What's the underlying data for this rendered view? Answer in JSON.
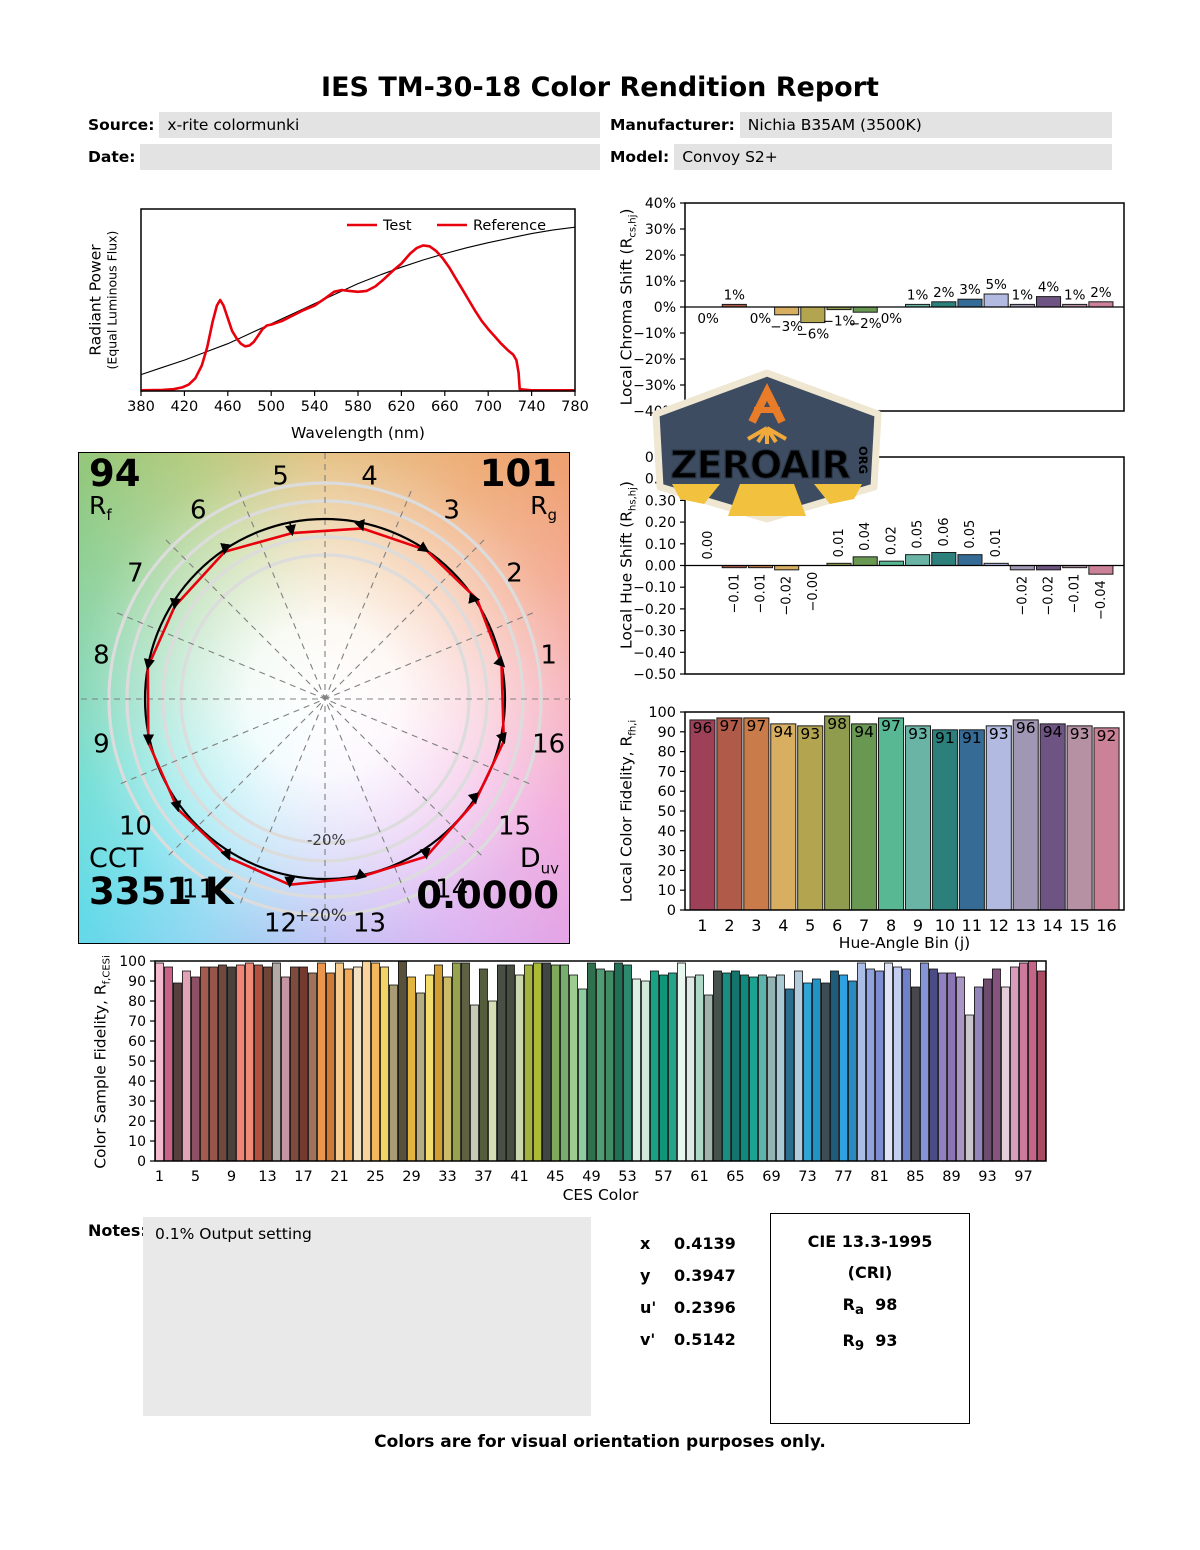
{
  "page": {
    "title": "IES TM-30-18 Color Rendition Report",
    "footer": "Colors are for visual orientation purposes only."
  },
  "fields": {
    "source_label": "Source:",
    "source_value": "x-rite colormunki",
    "manufacturer_label": "Manufacturer:",
    "manufacturer_value": "Nichia B35AM (3500K)",
    "date_label": "Date:",
    "date_value": "",
    "model_label": "Model:",
    "model_value": "Convoy S2+"
  },
  "watermark": {
    "name": "ZEROAIR",
    "org": "ORG",
    "bg": "#3d4c60",
    "accent": "#e87c28",
    "beam": "#f2c23e",
    "border": "#efe7d2"
  },
  "notes": {
    "label": "Notes:",
    "text": "0.1% Output setting"
  },
  "chromaticity": {
    "rows": [
      {
        "label": "x",
        "value": "0.4139"
      },
      {
        "label": "y",
        "value": "0.3947"
      },
      {
        "label": "u'",
        "value": "0.2396"
      },
      {
        "label": "v'",
        "value": "0.5142"
      }
    ]
  },
  "cri": {
    "title": "CIE 13.3-1995",
    "subtitle": "(CRI)",
    "ra_main": "R",
    "ra_sub": "a",
    "ra_value": "98",
    "r9_main": "R",
    "r9_sub": "9",
    "r9_value": "93"
  },
  "cvg": {
    "rf_value": "94",
    "rf_main": "R",
    "rf_sub": "f",
    "rg_value": "101",
    "rg_main": "R",
    "rg_sub": "g",
    "cct_label": "CCT",
    "cct_value": "3351 K",
    "duv_main": "D",
    "duv_sub": "uv",
    "duv_value": "0.0000",
    "ring_outer": "+20%",
    "ring_inner": "-20%",
    "test_color": "#e8000d",
    "bin_labels": [
      "1",
      "2",
      "3",
      "4",
      "5",
      "6",
      "7",
      "8",
      "9",
      "10",
      "11",
      "12",
      "13",
      "14",
      "15",
      "16"
    ],
    "chroma_shift_pct": [
      0,
      1,
      0,
      -3,
      -6,
      -1,
      -2,
      0,
      1,
      2,
      3,
      5,
      1,
      4,
      1,
      2
    ],
    "hue_shift": [
      0.0,
      -0.01,
      -0.01,
      -0.02,
      0.0,
      0.01,
      0.04,
      0.02,
      0.05,
      0.06,
      0.05,
      0.01,
      -0.02,
      -0.02,
      -0.01,
      -0.04
    ]
  },
  "bin_colors": [
    "#9e4058",
    "#b05a49",
    "#c97c49",
    "#d8ae60",
    "#b3a450",
    "#8f9b4d",
    "#689851",
    "#57b893",
    "#6ab4a5",
    "#2c7f7b",
    "#356b95",
    "#b2bae2",
    "#a097b4",
    "#6e5482",
    "#b691a4",
    "#cb8198"
  ],
  "chart_data": [
    {
      "id": "spd",
      "type": "line",
      "xlabel": "Wavelength (nm)",
      "ylabel_line1": "Radiant Power",
      "ylabel_line2": "(Equal Luminous Flux)",
      "xlim": [
        380,
        780
      ],
      "xticks": [
        380,
        420,
        460,
        500,
        540,
        580,
        620,
        660,
        700,
        740,
        780
      ],
      "legend": [
        {
          "label": "Test",
          "color": "#e8000d",
          "label_color": "#e8000d"
        },
        {
          "label": "Reference",
          "color": "#e8000d",
          "label_color": "#000000"
        }
      ],
      "series": [
        {
          "name": "Test",
          "color": "#e8000d",
          "width": 2.6,
          "x": [
            380,
            400,
            410,
            418,
            424,
            430,
            436,
            441,
            446,
            450,
            453,
            456,
            460,
            464,
            468,
            472,
            476,
            480,
            484,
            488,
            492,
            496,
            500,
            505,
            510,
            515,
            520,
            530,
            540,
            550,
            558,
            565,
            572,
            580,
            588,
            596,
            604,
            612,
            620,
            628,
            634,
            640,
            646,
            652,
            658,
            664,
            670,
            676,
            682,
            688,
            694,
            700,
            706,
            712,
            718,
            723,
            726,
            728,
            729,
            740,
            780
          ],
          "y": [
            0.004,
            0.006,
            0.01,
            0.02,
            0.035,
            0.07,
            0.14,
            0.24,
            0.38,
            0.47,
            0.5,
            0.47,
            0.4,
            0.33,
            0.29,
            0.26,
            0.245,
            0.25,
            0.27,
            0.305,
            0.34,
            0.36,
            0.365,
            0.375,
            0.385,
            0.4,
            0.415,
            0.445,
            0.47,
            0.51,
            0.545,
            0.555,
            0.55,
            0.545,
            0.55,
            0.575,
            0.615,
            0.66,
            0.7,
            0.755,
            0.785,
            0.8,
            0.795,
            0.77,
            0.73,
            0.68,
            0.62,
            0.56,
            0.5,
            0.44,
            0.385,
            0.34,
            0.3,
            0.26,
            0.225,
            0.2,
            0.17,
            0.1,
            0.01,
            0.004,
            0.004
          ]
        },
        {
          "name": "Reference",
          "color": "#000000",
          "width": 1.1,
          "x": [
            380,
            400,
            420,
            440,
            460,
            480,
            500,
            520,
            540,
            560,
            580,
            600,
            620,
            640,
            660,
            680,
            700,
            720,
            740,
            760,
            780
          ],
          "y": [
            0.09,
            0.13,
            0.17,
            0.215,
            0.26,
            0.315,
            0.37,
            0.425,
            0.48,
            0.535,
            0.59,
            0.637,
            0.68,
            0.72,
            0.755,
            0.787,
            0.815,
            0.84,
            0.865,
            0.885,
            0.9
          ]
        }
      ]
    },
    {
      "id": "chroma",
      "type": "bar",
      "ylabel_main": "Local Chroma Shift (R",
      "ylabel_sub": "cs,hj",
      "ylabel_end": ")",
      "ylim": [
        -40,
        40
      ],
      "ytick_vals": [
        40,
        30,
        20,
        10,
        0,
        -10,
        -20,
        -30,
        -40
      ],
      "yticks": [
        "40%",
        "30%",
        "20%",
        "10%",
        "0%",
        "−10%",
        "−20%",
        "−30%",
        "−40%"
      ],
      "values": [
        0,
        1,
        0,
        -3,
        -6,
        -1,
        -2,
        0,
        1,
        2,
        3,
        5,
        1,
        4,
        1,
        2
      ],
      "labels": [
        "0%",
        "1%",
        "0%",
        "−3%",
        "−6%",
        "−1%",
        "−2%",
        "0%",
        "1%",
        "2%",
        "3%",
        "5%",
        "1%",
        "4%",
        "1%",
        "2%"
      ]
    },
    {
      "id": "hue",
      "type": "bar",
      "ylabel_main": "Local Hue Shift (R",
      "ylabel_sub": "hs,hj",
      "ylabel_end": ")",
      "ylim": [
        -0.5,
        0.5
      ],
      "ytick_vals": [
        0.5,
        0.4,
        0.3,
        0.2,
        0.1,
        0,
        -0.1,
        -0.2,
        -0.3,
        -0.4,
        -0.5
      ],
      "yticks": [
        "0.50",
        "0.40",
        "0.30",
        "0.20",
        "0.10",
        "0.00",
        "−0.10",
        "−0.20",
        "−0.30",
        "−0.40",
        "−0.50"
      ],
      "values": [
        0.0,
        -0.01,
        -0.01,
        -0.02,
        -0.001,
        0.01,
        0.04,
        0.02,
        0.05,
        0.06,
        0.05,
        0.01,
        -0.02,
        -0.02,
        -0.01,
        -0.04
      ],
      "labels": [
        "0.00",
        "−0.01",
        "−0.01",
        "−0.02",
        "−0.00",
        "0.01",
        "0.04",
        "0.02",
        "0.05",
        "0.06",
        "0.05",
        "0.01",
        "−0.02",
        "−0.02",
        "−0.01",
        "−0.04"
      ]
    },
    {
      "id": "fidelity",
      "type": "bar",
      "ylabel_main": "Local Color Fidelity, R",
      "ylabel_sub": "fh,i",
      "ylabel_end": "",
      "xlabel": "Hue-Angle Bin (j)",
      "ylim": [
        0,
        100
      ],
      "ytick_vals": [
        100,
        90,
        80,
        70,
        60,
        50,
        40,
        30,
        20,
        10,
        0
      ],
      "yticks": [
        "100",
        "90",
        "80",
        "70",
        "60",
        "50",
        "40",
        "30",
        "20",
        "10",
        "0"
      ],
      "categories": [
        "1",
        "2",
        "3",
        "4",
        "5",
        "6",
        "7",
        "8",
        "9",
        "10",
        "11",
        "12",
        "13",
        "14",
        "15",
        "16"
      ],
      "values": [
        96,
        97,
        97,
        94,
        93,
        98,
        94,
        97,
        93,
        91,
        91,
        93,
        96,
        94,
        93,
        92
      ]
    },
    {
      "id": "ces",
      "type": "bar",
      "ylabel_main": "Color Sample Fidelity, R",
      "ylabel_sub": "f,CESi",
      "ylabel_end": "",
      "xlabel": "CES Color",
      "ylim": [
        0,
        100
      ],
      "ytick_vals": [
        100,
        90,
        80,
        70,
        60,
        50,
        40,
        30,
        20,
        10,
        0
      ],
      "yticks": [
        "100",
        "90",
        "80",
        "70",
        "60",
        "50",
        "40",
        "30",
        "20",
        "10",
        "0"
      ],
      "xticks": [
        1,
        5,
        9,
        13,
        17,
        21,
        25,
        29,
        33,
        37,
        41,
        45,
        49,
        53,
        57,
        61,
        65,
        69,
        73,
        77,
        81,
        85,
        89,
        93,
        97
      ],
      "values": [
        99,
        97,
        89,
        95,
        92,
        97,
        97,
        98,
        97,
        98,
        99,
        98,
        97,
        99,
        92,
        97,
        97,
        94,
        99,
        94,
        99,
        96,
        97,
        100,
        99,
        97,
        88,
        100,
        92,
        84,
        93,
        98,
        92,
        99,
        99,
        78,
        96,
        80,
        98,
        98,
        93,
        98,
        99,
        99,
        98,
        98,
        93,
        86,
        99,
        96,
        95,
        99,
        98,
        91,
        90,
        95,
        93,
        94,
        99,
        92,
        93,
        83,
        95,
        94,
        95,
        93,
        92,
        93,
        92,
        93,
        86,
        95,
        89,
        91,
        89,
        95,
        93,
        90,
        99,
        96,
        95,
        99,
        97,
        96,
        87,
        99,
        96,
        94,
        94,
        92,
        73,
        87,
        91,
        96,
        87,
        97,
        99,
        100,
        95
      ],
      "colors": [
        "#f2b9cf",
        "#ca6287",
        "#573f3e",
        "#e2a3b6",
        "#8e5064",
        "#a35a4f",
        "#985549",
        "#70493c",
        "#4b413c",
        "#f08376",
        "#ef8a77",
        "#b25140",
        "#6f4439",
        "#b3aaa5",
        "#c695a2",
        "#7f4b3d",
        "#743a30",
        "#a1725b",
        "#ea974d",
        "#cd7b36",
        "#f7ca8e",
        "#f2a958",
        "#f2e0c2",
        "#fbd49d",
        "#f4b75c",
        "#f2d366",
        "#a99b74",
        "#595139",
        "#e4b440",
        "#b4ac82",
        "#f2dd6c",
        "#d29d31",
        "#ccba66",
        "#98a34d",
        "#5e6243",
        "#c7cab5",
        "#555d3d",
        "#d7ddb3",
        "#484f44",
        "#464d41",
        "#cdd8af",
        "#a4b23f",
        "#abbc34",
        "#404641",
        "#80aa5b",
        "#75ae6d",
        "#9dcc90",
        "#8ccca0",
        "#30704e",
        "#509c73",
        "#408d64",
        "#207056",
        "#2c8b6f",
        "#daf1e3",
        "#d0e9d9",
        "#1aa284",
        "#0f967a",
        "#23a489",
        "#e9f8ef",
        "#e0e9e5",
        "#acd9c7",
        "#a0b4ac",
        "#46524e",
        "#188d81",
        "#15746b",
        "#108b7b",
        "#1ca493",
        "#5db4ac",
        "#94b4b4",
        "#a9c9d3",
        "#2b6d8d",
        "#b3cbdb",
        "#30a4d4",
        "#2094c7",
        "#3d4d55",
        "#205b79",
        "#30a1e1",
        "#2989c1",
        "#aabde7",
        "#90a3dd",
        "#7e8dd1",
        "#e0e4f6",
        "#c4cef0",
        "#7080c9",
        "#48484c",
        "#8595d7",
        "#4b4b86",
        "#9081c1",
        "#8b75b3",
        "#aa96c5",
        "#cac6ca",
        "#9286bc",
        "#6e4c6e",
        "#87547f",
        "#e4ceda",
        "#d79dbb",
        "#cd7b9c",
        "#c56587",
        "#a94b63"
      ]
    }
  ]
}
